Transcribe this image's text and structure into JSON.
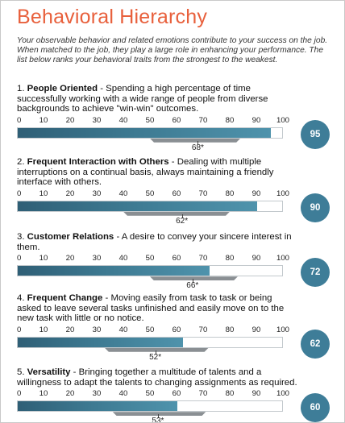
{
  "title": "Behavioral Hierarchy",
  "intro": "Your observable behavior and related emotions contribute to your success on the job. When matched to the job, they play a large role in enhancing your performance.  The list below ranks your behavioral traits from the strongest to the weakest.",
  "scale_ticks": [
    "0",
    "10",
    "20",
    "30",
    "40",
    "50",
    "60",
    "70",
    "80",
    "90",
    "100"
  ],
  "items": [
    {
      "number": "1.",
      "name": "People Oriented",
      "description": " - Spending a high percentage of time successfully working with a wide range of people from diverse backgrounds to achieve \"win-win\" outcomes.",
      "score": 95,
      "score_label": "95",
      "marker_value": 68,
      "marker_label": "68*",
      "range": [
        50,
        84
      ]
    },
    {
      "number": "2.",
      "name": "Frequent Interaction with Others",
      "description": " - Dealing with multiple interruptions on a continual basis, always maintaining a friendly interface with others.",
      "score": 90,
      "score_label": "90",
      "marker_value": 62,
      "marker_label": "62*",
      "range": [
        40,
        80
      ]
    },
    {
      "number": "3.",
      "name": "Customer Relations",
      "description": " - A desire to convey your sincere interest in them.",
      "score": 72,
      "score_label": "72",
      "marker_value": 66,
      "marker_label": "66*",
      "range": [
        50,
        83
      ]
    },
    {
      "number": "4.",
      "name": "Frequent Change",
      "description": " - Moving easily from task to task or being asked to leave several tasks unfinished and easily move on to the new task with little or no notice.",
      "score": 62,
      "score_label": "62",
      "marker_value": 52,
      "marker_label": "52*",
      "range": [
        33,
        72
      ]
    },
    {
      "number": "5.",
      "name": "Versatility",
      "description": " - Bringing together a multitude of talents and a willingness to adapt the talents to changing assignments as required.",
      "score": 60,
      "score_label": "60",
      "marker_value": 53,
      "marker_label": "53*",
      "range": [
        36,
        71
      ]
    }
  ]
}
